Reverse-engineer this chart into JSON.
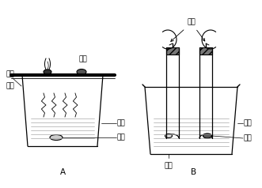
{
  "bg_color": "#ffffff",
  "line_color": "#000000",
  "gray_color": "#888888",
  "dark_gray": "#555555",
  "label_A": "A",
  "label_B": "B",
  "labels_A": {
    "bai_lin_top": "白磷",
    "hong_lin": "红磷",
    "tong_pian": "铜片",
    "re_shui": "热水",
    "bai_lin_bot": "白磷"
  },
  "labels_B": {
    "qi_qiu": "气球",
    "re_shui": "热水",
    "hong_lin": "红磷",
    "bai_lin": "白磷"
  },
  "font_size": 6.5,
  "font_family": "SimHei",
  "water_dash_color": "#aaaaaa"
}
